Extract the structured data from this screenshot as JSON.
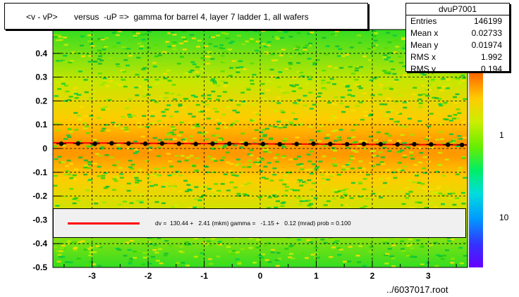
{
  "title": "<v - vP>       versus  -uP =>  gamma for barrel 4, layer 7 ladder 1, all wafers",
  "stats": {
    "name": "dvuP7001",
    "rows": [
      {
        "label": "Entries",
        "value": "146199"
      },
      {
        "label": "Mean x",
        "value": "0.02733"
      },
      {
        "label": "Mean y",
        "value": "0.01974"
      },
      {
        "label": "RMS x",
        "value": "1.992"
      },
      {
        "label": "RMS y",
        "value": "0.194"
      }
    ]
  },
  "legend": {
    "fit_text": "dv =  130.44 +   2.41 (mkm) gamma =   -1.15 +   0.12 (mrad) prob = 0.100",
    "line_color": "#ff0000"
  },
  "footer": "../6037017.root",
  "colors": {
    "frame": "#000000",
    "fit": "#ff0000",
    "profile": "#000000"
  },
  "chart_data": {
    "type": "heatmap",
    "xlim": [
      -3.7,
      3.7
    ],
    "ylim": [
      -0.5,
      0.5
    ],
    "x_ticks": [
      -3,
      -2,
      -1,
      0,
      1,
      2,
      3
    ],
    "y_ticks": [
      -0.5,
      -0.4,
      -0.3,
      -0.2,
      -0.1,
      0,
      0.1,
      0.2,
      0.3,
      0.4
    ],
    "y_tick_labels": [
      "-0.5",
      "-0.4",
      "-0.3",
      "-0.2",
      "-0.1",
      "0",
      "0.1",
      "0.2",
      "0.3",
      "0.4"
    ],
    "colorbar_ticks": [
      {
        "value": "1",
        "label": "1"
      },
      {
        "value": "10",
        "label": "10"
      }
    ],
    "grid": true,
    "fit_line": {
      "intercept": 0.0195,
      "slope": -0.0012
    },
    "profile_points": [
      {
        "x": -3.55,
        "y": 0.02
      },
      {
        "x": -3.25,
        "y": 0.021
      },
      {
        "x": -2.95,
        "y": 0.02
      },
      {
        "x": -2.65,
        "y": 0.022
      },
      {
        "x": -2.35,
        "y": 0.021
      },
      {
        "x": -2.05,
        "y": 0.02
      },
      {
        "x": -1.75,
        "y": 0.021
      },
      {
        "x": -1.45,
        "y": 0.02
      },
      {
        "x": -1.15,
        "y": 0.019
      },
      {
        "x": -0.85,
        "y": 0.02
      },
      {
        "x": -0.55,
        "y": 0.02
      },
      {
        "x": -0.25,
        "y": 0.019
      },
      {
        "x": 0.05,
        "y": 0.019
      },
      {
        "x": 0.35,
        "y": 0.018
      },
      {
        "x": 0.65,
        "y": 0.019
      },
      {
        "x": 0.95,
        "y": 0.02
      },
      {
        "x": 1.25,
        "y": 0.019
      },
      {
        "x": 1.55,
        "y": 0.018
      },
      {
        "x": 1.85,
        "y": 0.019
      },
      {
        "x": 2.15,
        "y": 0.018
      },
      {
        "x": 2.45,
        "y": 0.017
      },
      {
        "x": 2.75,
        "y": 0.018
      },
      {
        "x": 3.05,
        "y": 0.017
      },
      {
        "x": 3.35,
        "y": 0.016
      },
      {
        "x": 3.6,
        "y": 0.015
      }
    ]
  }
}
